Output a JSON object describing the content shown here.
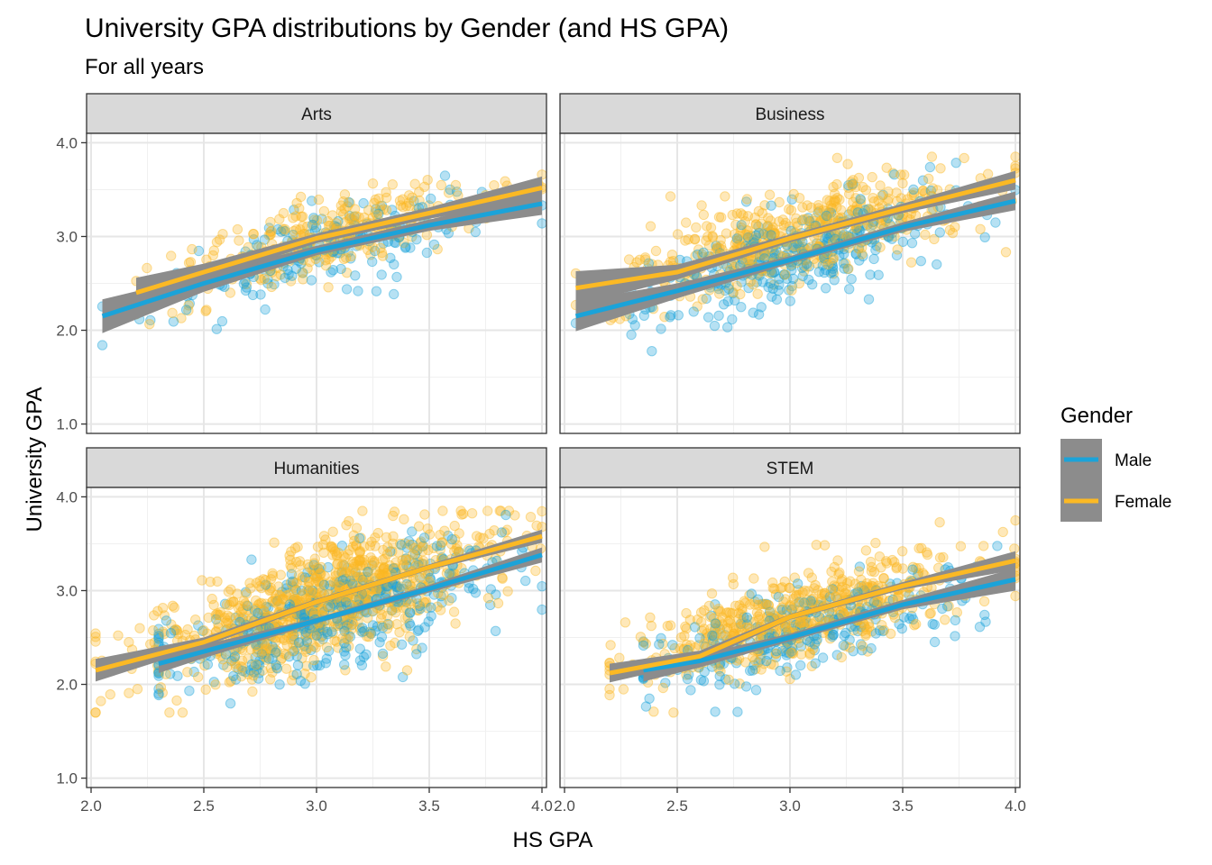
{
  "chart_data": {
    "type": "scatter",
    "title": "University GPA distributions by Gender (and HS GPA)",
    "subtitle": "For all years",
    "xlabel": "HS GPA",
    "ylabel": "University GPA",
    "xlim": [
      1.98,
      4.02
    ],
    "ylim": [
      0.9,
      4.1
    ],
    "x_ticks": [
      "2.0",
      "2.5",
      "3.0",
      "3.5",
      "4.0"
    ],
    "y_ticks": [
      "1.0",
      "2.0",
      "3.0",
      "4.0"
    ],
    "grid": true,
    "facet_layout": "2x2",
    "colors": {
      "Male": "#1ba3d9",
      "Female": "#fbb924",
      "ribbon": "#8c8c8c"
    },
    "legend": {
      "title": "Gender",
      "position": "right",
      "entries": [
        {
          "label": "Male",
          "color": "#1ba3d9"
        },
        {
          "label": "Female",
          "color": "#fbb924"
        }
      ]
    },
    "panels": [
      {
        "name": "Arts",
        "male_points": {
          "count": 200,
          "x_range": [
            2.05,
            4.0
          ],
          "y_mean_at_x": [
            [
              2.05,
              2.15
            ],
            [
              3.0,
              2.85
            ],
            [
              4.0,
              3.35
            ]
          ],
          "spread": 0.22
        },
        "female_points": {
          "count": 320,
          "x_range": [
            2.2,
            4.0
          ],
          "y_mean_at_x": [
            [
              2.2,
              2.4
            ],
            [
              3.0,
              2.98
            ],
            [
              4.0,
              3.52
            ]
          ],
          "spread": 0.2
        },
        "series": [
          {
            "name": "Male",
            "x": [
              2.05,
              2.5,
              3.0,
              3.5,
              4.0
            ],
            "y": [
              2.15,
              2.5,
              2.85,
              3.12,
              3.35
            ],
            "band": [
              0.18,
              0.09,
              0.05,
              0.06,
              0.12
            ]
          },
          {
            "name": "Female",
            "x": [
              2.2,
              2.5,
              3.0,
              3.5,
              4.0
            ],
            "y": [
              2.4,
              2.62,
              2.98,
              3.25,
              3.52
            ],
            "band": [
              0.16,
              0.09,
              0.05,
              0.06,
              0.12
            ]
          }
        ]
      },
      {
        "name": "Business",
        "male_points": {
          "count": 320,
          "x_range": [
            2.05,
            4.0
          ],
          "y_mean_at_x": [
            [
              2.05,
              2.15
            ],
            [
              3.0,
              2.75
            ],
            [
              4.0,
              3.38
            ]
          ],
          "spread": 0.24
        },
        "female_points": {
          "count": 520,
          "x_range": [
            2.05,
            4.0
          ],
          "y_mean_at_x": [
            [
              2.05,
              2.45
            ],
            [
              3.0,
              2.98
            ],
            [
              4.0,
              3.6
            ]
          ],
          "spread": 0.24
        },
        "series": [
          {
            "name": "Male",
            "x": [
              2.05,
              2.5,
              3.0,
              3.5,
              4.0
            ],
            "y": [
              2.15,
              2.42,
              2.75,
              3.1,
              3.38
            ],
            "band": [
              0.16,
              0.08,
              0.04,
              0.05,
              0.1
            ]
          },
          {
            "name": "Female",
            "x": [
              2.05,
              2.5,
              3.0,
              3.5,
              4.0
            ],
            "y": [
              2.45,
              2.62,
              2.98,
              3.3,
              3.6
            ],
            "band": [
              0.18,
              0.08,
              0.04,
              0.05,
              0.1
            ]
          }
        ]
      },
      {
        "name": "Humanities",
        "male_points": {
          "count": 420,
          "x_range": [
            2.3,
            4.0
          ],
          "y_mean_at_x": [
            [
              2.3,
              2.22
            ],
            [
              3.0,
              2.68
            ],
            [
              4.0,
              3.38
            ]
          ],
          "spread": 0.28
        },
        "female_points": {
          "count": 900,
          "x_range": [
            2.02,
            4.0
          ],
          "y_mean_at_x": [
            [
              2.02,
              2.15
            ],
            [
              3.0,
              2.88
            ],
            [
              4.0,
              3.58
            ]
          ],
          "spread": 0.28
        },
        "series": [
          {
            "name": "Male",
            "x": [
              2.3,
              2.5,
              3.0,
              3.5,
              4.0
            ],
            "y": [
              2.22,
              2.35,
              2.68,
              3.02,
              3.38
            ],
            "band": [
              0.1,
              0.07,
              0.03,
              0.04,
              0.08
            ]
          },
          {
            "name": "Female",
            "x": [
              2.02,
              2.5,
              3.0,
              3.5,
              4.0
            ],
            "y": [
              2.15,
              2.45,
              2.88,
              3.25,
              3.58
            ],
            "band": [
              0.12,
              0.05,
              0.03,
              0.03,
              0.07
            ]
          }
        ]
      },
      {
        "name": "STEM",
        "male_points": {
          "count": 260,
          "x_range": [
            2.35,
            4.0
          ],
          "y_mean_at_x": [
            [
              2.35,
              2.15
            ],
            [
              3.0,
              2.5
            ],
            [
              4.0,
              3.12
            ]
          ],
          "spread": 0.22
        },
        "female_points": {
          "count": 560,
          "x_range": [
            2.2,
            4.0
          ],
          "y_mean_at_x": [
            [
              2.2,
              2.12
            ],
            [
              3.0,
              2.72
            ],
            [
              4.0,
              3.32
            ]
          ],
          "spread": 0.22
        },
        "series": [
          {
            "name": "Male",
            "x": [
              2.35,
              2.6,
              3.0,
              3.5,
              4.0
            ],
            "y": [
              2.15,
              2.25,
              2.5,
              2.85,
              3.12
            ],
            "band": [
              0.12,
              0.07,
              0.04,
              0.05,
              0.12
            ]
          },
          {
            "name": "Female",
            "x": [
              2.2,
              2.6,
              3.0,
              3.5,
              4.0
            ],
            "y": [
              2.12,
              2.3,
              2.72,
              3.05,
              3.32
            ],
            "band": [
              0.1,
              0.06,
              0.03,
              0.04,
              0.1
            ]
          }
        ]
      }
    ]
  }
}
